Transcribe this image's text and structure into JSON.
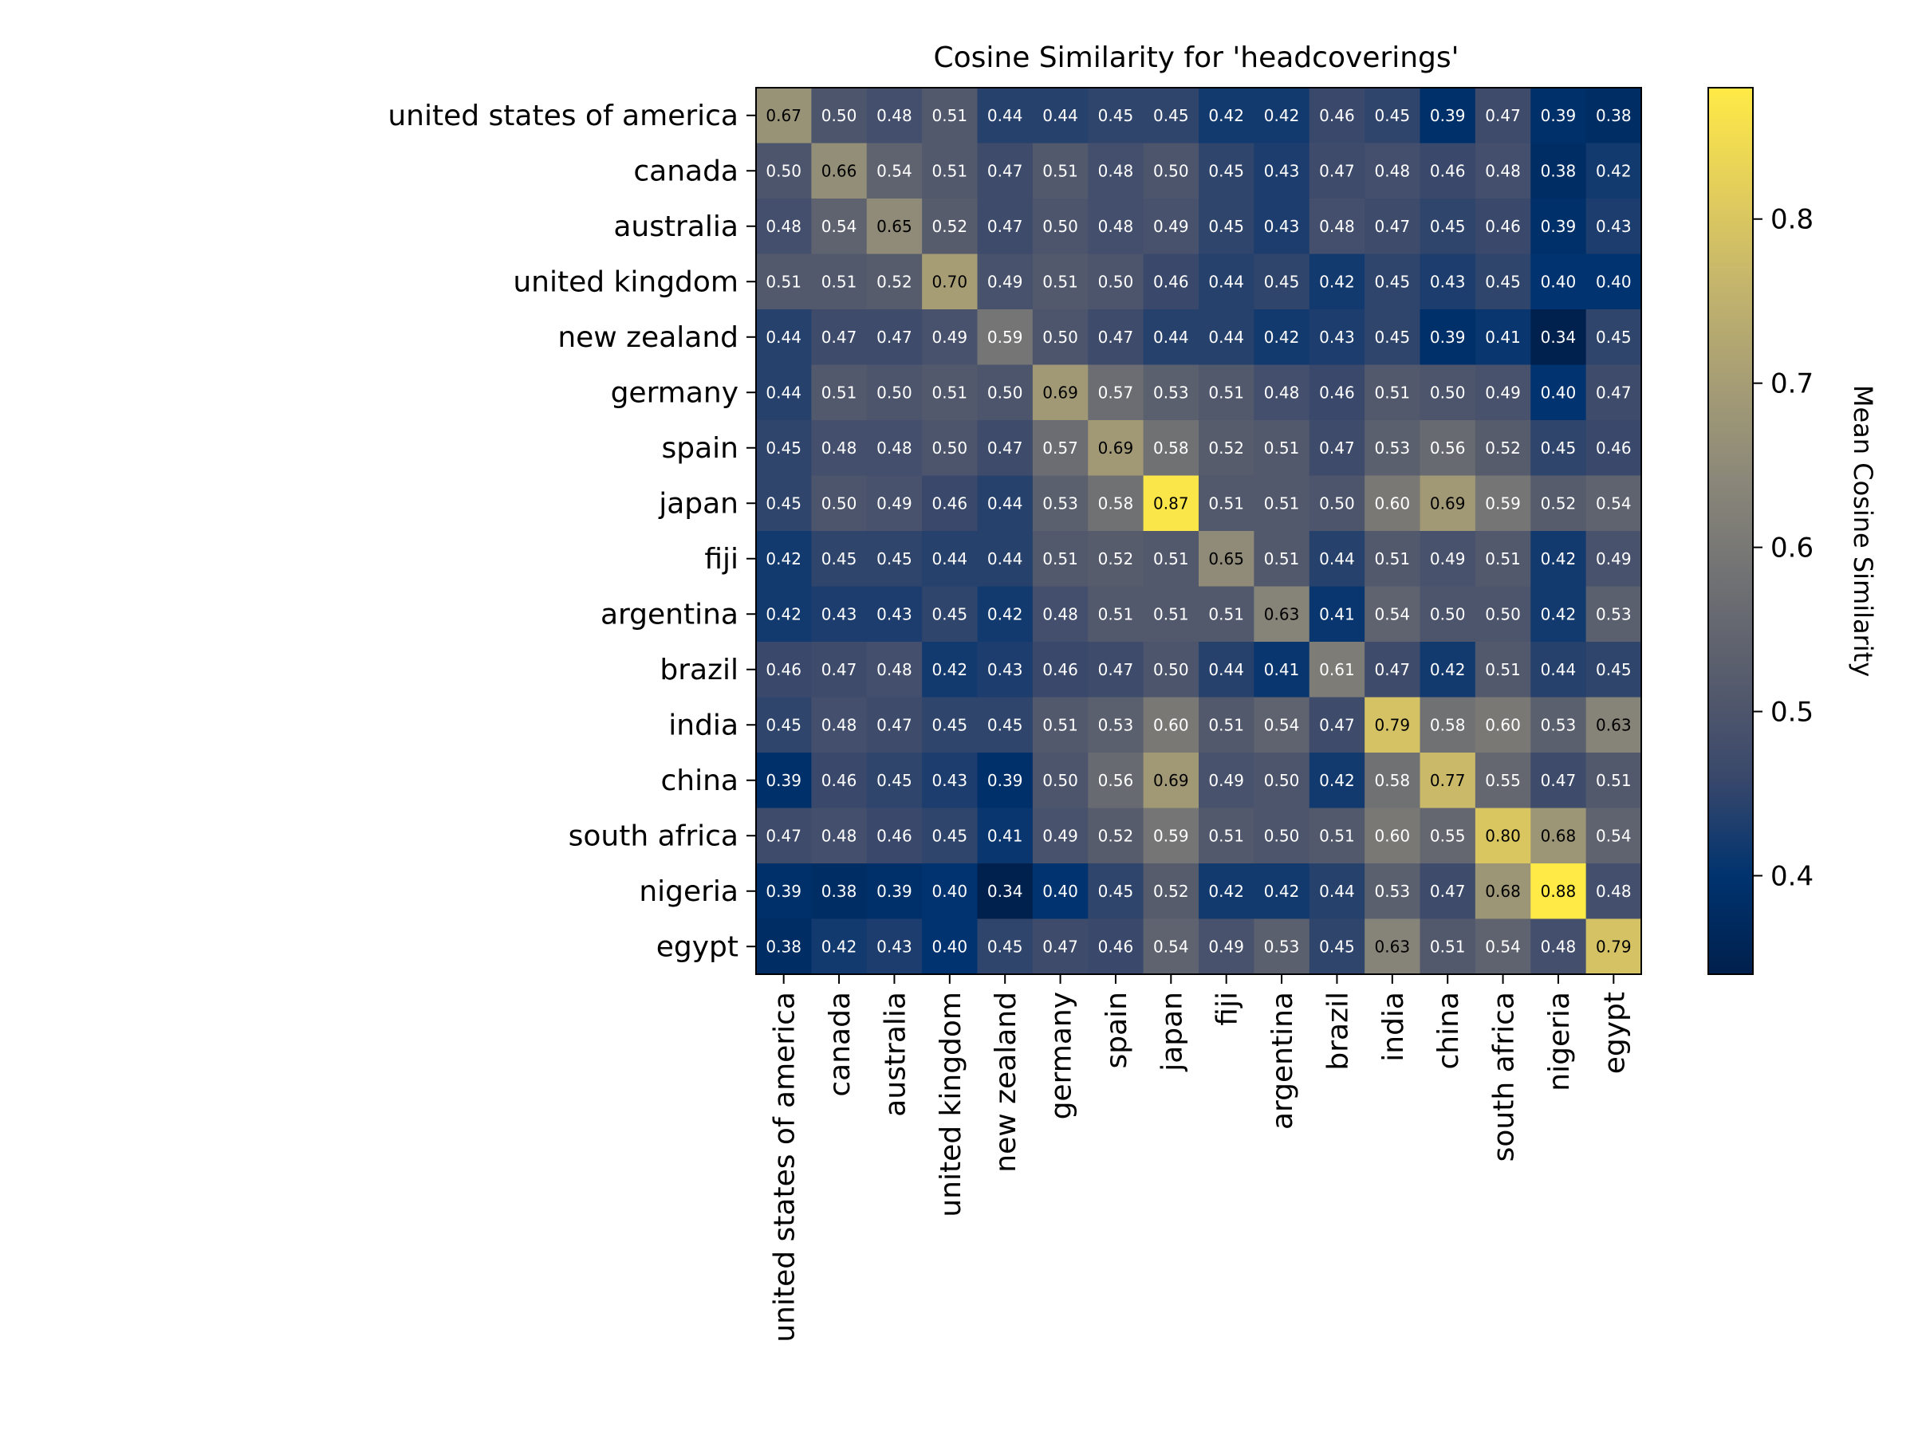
{
  "chart_data": {
    "type": "heatmap",
    "title": "Cosine Similarity for 'headcoverings'",
    "colorbar_label": "Mean Cosine Similarity",
    "colorbar_ticks": [
      "0.4",
      "0.5",
      "0.6",
      "0.7",
      "0.8"
    ],
    "colorbar_tick_values": [
      0.4,
      0.5,
      0.6,
      0.7,
      0.8
    ],
    "color_range": [
      0.34,
      0.88
    ],
    "colormap": "cividis",
    "colormap_stops": [
      "#00204d",
      "#00336f",
      "#39486b",
      "#575c6d",
      "#707173",
      "#8a8779",
      "#a69d75",
      "#c4b56c",
      "#e4cf5b",
      "#ffea46"
    ],
    "rows": [
      "united states of america",
      "canada",
      "australia",
      "united kingdom",
      "new zealand",
      "germany",
      "spain",
      "japan",
      "fiji",
      "argentina",
      "brazil",
      "india",
      "china",
      "south africa",
      "nigeria",
      "egypt"
    ],
    "columns": [
      "united states of america",
      "canada",
      "australia",
      "united kingdom",
      "new zealand",
      "germany",
      "spain",
      "japan",
      "fiji",
      "argentina",
      "brazil",
      "india",
      "china",
      "south africa",
      "nigeria",
      "egypt"
    ],
    "values": [
      [
        0.67,
        0.5,
        0.48,
        0.51,
        0.44,
        0.44,
        0.45,
        0.45,
        0.42,
        0.42,
        0.46,
        0.45,
        0.39,
        0.47,
        0.39,
        0.38
      ],
      [
        0.5,
        0.66,
        0.54,
        0.51,
        0.47,
        0.51,
        0.48,
        0.5,
        0.45,
        0.43,
        0.47,
        0.48,
        0.46,
        0.48,
        0.38,
        0.42
      ],
      [
        0.48,
        0.54,
        0.65,
        0.52,
        0.47,
        0.5,
        0.48,
        0.49,
        0.45,
        0.43,
        0.48,
        0.47,
        0.45,
        0.46,
        0.39,
        0.43
      ],
      [
        0.51,
        0.51,
        0.52,
        0.7,
        0.49,
        0.51,
        0.5,
        0.46,
        0.44,
        0.45,
        0.42,
        0.45,
        0.43,
        0.45,
        0.4,
        0.4
      ],
      [
        0.44,
        0.47,
        0.47,
        0.49,
        0.59,
        0.5,
        0.47,
        0.44,
        0.44,
        0.42,
        0.43,
        0.45,
        0.39,
        0.41,
        0.34,
        0.45
      ],
      [
        0.44,
        0.51,
        0.5,
        0.51,
        0.5,
        0.69,
        0.57,
        0.53,
        0.51,
        0.48,
        0.46,
        0.51,
        0.5,
        0.49,
        0.4,
        0.47
      ],
      [
        0.45,
        0.48,
        0.48,
        0.5,
        0.47,
        0.57,
        0.69,
        0.58,
        0.52,
        0.51,
        0.47,
        0.53,
        0.56,
        0.52,
        0.45,
        0.46
      ],
      [
        0.45,
        0.5,
        0.49,
        0.46,
        0.44,
        0.53,
        0.58,
        0.87,
        0.51,
        0.51,
        0.5,
        0.6,
        0.69,
        0.59,
        0.52,
        0.54
      ],
      [
        0.42,
        0.45,
        0.45,
        0.44,
        0.44,
        0.51,
        0.52,
        0.51,
        0.65,
        0.51,
        0.44,
        0.51,
        0.49,
        0.51,
        0.42,
        0.49
      ],
      [
        0.42,
        0.43,
        0.43,
        0.45,
        0.42,
        0.48,
        0.51,
        0.51,
        0.51,
        0.63,
        0.41,
        0.54,
        0.5,
        0.5,
        0.42,
        0.53
      ],
      [
        0.46,
        0.47,
        0.48,
        0.42,
        0.43,
        0.46,
        0.47,
        0.5,
        0.44,
        0.41,
        0.61,
        0.47,
        0.42,
        0.51,
        0.44,
        0.45
      ],
      [
        0.45,
        0.48,
        0.47,
        0.45,
        0.45,
        0.51,
        0.53,
        0.6,
        0.51,
        0.54,
        0.47,
        0.79,
        0.58,
        0.6,
        0.53,
        0.63
      ],
      [
        0.39,
        0.46,
        0.45,
        0.43,
        0.39,
        0.5,
        0.56,
        0.69,
        0.49,
        0.5,
        0.42,
        0.58,
        0.77,
        0.55,
        0.47,
        0.51
      ],
      [
        0.47,
        0.48,
        0.46,
        0.45,
        0.41,
        0.49,
        0.52,
        0.59,
        0.51,
        0.5,
        0.51,
        0.6,
        0.55,
        0.8,
        0.68,
        0.54
      ],
      [
        0.39,
        0.38,
        0.39,
        0.4,
        0.34,
        0.4,
        0.45,
        0.52,
        0.42,
        0.42,
        0.44,
        0.53,
        0.47,
        0.68,
        0.88,
        0.48
      ],
      [
        0.38,
        0.42,
        0.43,
        0.4,
        0.45,
        0.47,
        0.46,
        0.54,
        0.49,
        0.53,
        0.45,
        0.63,
        0.51,
        0.54,
        0.48,
        0.79
      ]
    ]
  }
}
